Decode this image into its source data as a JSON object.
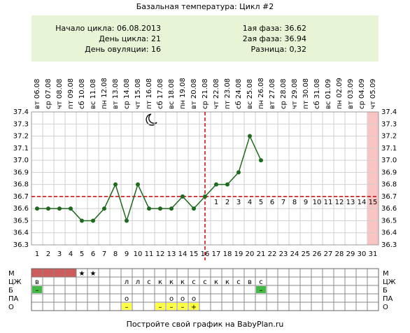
{
  "chart_data": {
    "type": "line",
    "title": "Базальная температура: Цикл #2",
    "info": {
      "left": [
        "Начало цикла: 06.08.2013",
        "День цикла: 21",
        "День овуляции: 16"
      ],
      "right": [
        "1ая фаза: 36.62",
        "2ая фаза: 36.94",
        "Разница: 0,32"
      ]
    },
    "dates": [
      "вт 06.08",
      "ср 07.08",
      "чт 08.08",
      "пт 09.08",
      "сб 10.08",
      "вс 11.08",
      "пн 12.08",
      "вт 13.08",
      "ср 14.08",
      "чт 15.08",
      "пт 16.08",
      "сб 17.08",
      "вс 18.08",
      "пн 19.08",
      "вт 20.08",
      "ср 21.08",
      "чт 22.08",
      "пт 23.08",
      "сб 24.08",
      "вс 25.08",
      "пн 26.08",
      "вт 27.08",
      "ср 28.08",
      "чт 29.08",
      "пт 30.08",
      "сб 31.08",
      "вс 01.09",
      "пн 02.09",
      "вт 03.09",
      "ср 04.09",
      "чт 05.09"
    ],
    "categories": [
      1,
      2,
      3,
      4,
      5,
      6,
      7,
      8,
      9,
      10,
      11,
      12,
      13,
      14,
      15,
      16,
      17,
      18,
      19,
      20,
      21,
      22,
      23,
      24,
      25,
      26,
      27,
      28,
      29,
      30,
      31
    ],
    "series": [
      {
        "color": "#1e6b1e",
        "values": [
          36.6,
          36.6,
          36.6,
          36.6,
          36.5,
          36.5,
          36.6,
          36.8,
          36.5,
          36.8,
          36.6,
          36.6,
          36.6,
          36.7,
          36.6,
          36.7,
          36.8,
          36.8,
          36.9,
          37.2,
          37.0,
          null,
          null,
          null,
          null,
          null,
          null,
          null,
          null,
          null,
          null
        ]
      }
    ],
    "ylim": [
      36.3,
      37.4
    ],
    "yticks": [
      36.3,
      36.4,
      36.5,
      36.6,
      36.7,
      36.8,
      36.9,
      {
        "value": 37,
        "label": "37.0"
      },
      37.1,
      37.2,
      37.3,
      37.4
    ],
    "grid": true,
    "coverline": 36.7,
    "ovulation_day": 16,
    "phase2_labels": [
      1,
      2,
      3,
      4,
      5,
      6,
      7,
      8,
      9,
      10,
      11,
      12,
      13,
      14,
      15
    ],
    "highlight_days": [
      31
    ],
    "table": {
      "rows": [
        {
          "label": "М",
          "fill": "#cd5c5c",
          "fill_days": [
            1,
            2,
            3,
            4
          ],
          "text_color": "#e06060",
          "cells": [
            null,
            null,
            null,
            null,
            "★",
            "★",
            null,
            null,
            null,
            null,
            null,
            null,
            null,
            null,
            null,
            null,
            null,
            null,
            null,
            null,
            null,
            null,
            null,
            null,
            null,
            null,
            null,
            null,
            null,
            null,
            null
          ]
        },
        {
          "label": "ЦЖ",
          "cells": [
            "в",
            null,
            null,
            null,
            null,
            null,
            null,
            null,
            "л",
            "л",
            "с",
            "к",
            "к",
            "к",
            "с",
            "с",
            "к",
            "к",
            "с",
            "в",
            "с",
            null,
            null,
            null,
            null,
            null,
            null,
            null,
            null,
            null,
            null
          ]
        },
        {
          "label": "Б",
          "fill": "#44b944",
          "text_color": "#ffffff",
          "cells": [
            "–",
            null,
            null,
            null,
            null,
            null,
            null,
            null,
            null,
            null,
            null,
            null,
            null,
            null,
            null,
            null,
            null,
            null,
            null,
            null,
            "–",
            null,
            null,
            null,
            null,
            null,
            null,
            null,
            null,
            null,
            null
          ]
        },
        {
          "label": "ПА",
          "text_color": "#cc3333",
          "cells": [
            null,
            null,
            null,
            null,
            null,
            null,
            null,
            null,
            "о",
            null,
            null,
            null,
            "о",
            "о",
            "о",
            null,
            null,
            null,
            null,
            null,
            null,
            null,
            null,
            null,
            null,
            null,
            null,
            null,
            null,
            null,
            null
          ]
        },
        {
          "label": "О",
          "fill": "#ffff44",
          "cells": [
            null,
            null,
            null,
            null,
            null,
            null,
            null,
            null,
            "–",
            null,
            null,
            "–",
            "–",
            "–",
            "+",
            null,
            null,
            null,
            null,
            null,
            null,
            null,
            null,
            null,
            null,
            null,
            null,
            null,
            null,
            null,
            null
          ]
        }
      ]
    },
    "footer": "Постройте свой график на BabyPlan.ru"
  }
}
